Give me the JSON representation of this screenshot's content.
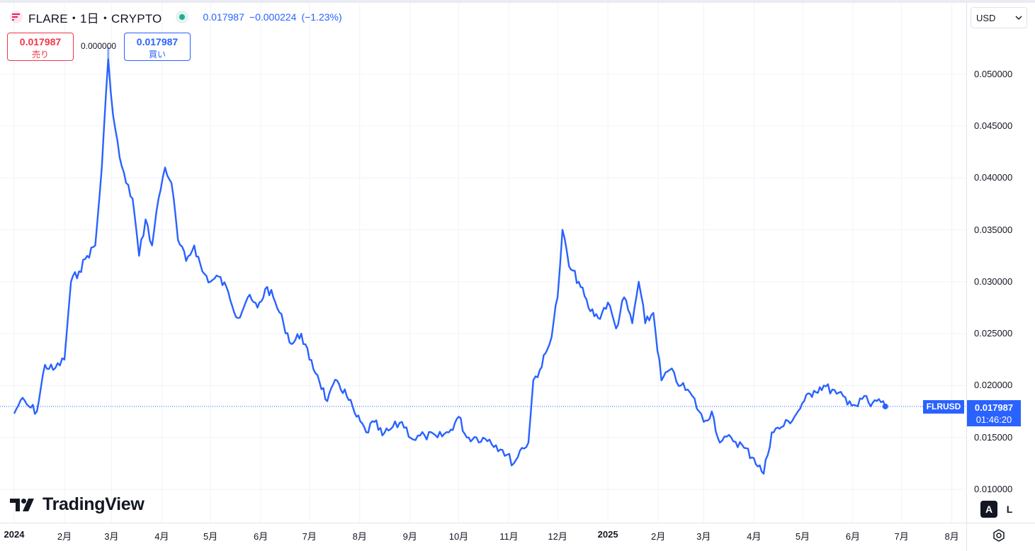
{
  "legend": {
    "title": "FLARE・1日・CRYPTO",
    "last": "0.017987",
    "change": "−0.000224",
    "change_pct": "(−1.23%)"
  },
  "trade": {
    "sell_price": "0.017987",
    "sell_label": "売り",
    "spread": "0.000000",
    "buy_price": "0.017987",
    "buy_label": "買い"
  },
  "currency": "USD",
  "price_axis": [
    "0.050000",
    "0.045000",
    "0.040000",
    "0.035000",
    "0.030000",
    "0.025000",
    "0.020000",
    "0.015000",
    "0.010000"
  ],
  "time_axis": [
    "2024",
    "2月",
    "3月",
    "4月",
    "5月",
    "6月",
    "7月",
    "8月",
    "9月",
    "10月",
    "11月",
    "12月",
    "2025",
    "2月",
    "3月",
    "4月",
    "5月",
    "6月",
    "7月",
    "8月"
  ],
  "last_price_label": {
    "symbol": "FLRUSD",
    "price": "0.017987",
    "countdown": "01:46:20"
  },
  "watermark": "TradingView",
  "scale_buttons": {
    "auto": "A",
    "log": "L"
  },
  "colors": {
    "line": "#2962ff",
    "sell": "#f23645",
    "buy": "#2962ff",
    "grid": "#f0f3fa"
  },
  "chart_data": {
    "type": "line",
    "series": [
      {
        "name": "FLRUSD",
        "points": [
          [
            "2024-01-01",
            0.0173
          ],
          [
            "2024-01-05",
            0.0186
          ],
          [
            "2024-01-10",
            0.018
          ],
          [
            "2024-01-15",
            0.0175
          ],
          [
            "2024-01-20",
            0.022
          ],
          [
            "2024-01-25",
            0.0215
          ],
          [
            "2024-02-01",
            0.0225
          ],
          [
            "2024-02-05",
            0.03
          ],
          [
            "2024-02-10",
            0.031
          ],
          [
            "2024-02-15",
            0.0325
          ],
          [
            "2024-02-20",
            0.0335
          ],
          [
            "2024-02-24",
            0.041
          ],
          [
            "2024-02-28",
            0.0515
          ],
          [
            "2024-03-02",
            0.046
          ],
          [
            "2024-03-06",
            0.042
          ],
          [
            "2024-03-10",
            0.0395
          ],
          [
            "2024-03-14",
            0.038
          ],
          [
            "2024-03-18",
            0.0325
          ],
          [
            "2024-03-22",
            0.036
          ],
          [
            "2024-03-26",
            0.0335
          ],
          [
            "2024-03-30",
            0.038
          ],
          [
            "2024-04-03",
            0.041
          ],
          [
            "2024-04-07",
            0.0395
          ],
          [
            "2024-04-11",
            0.034
          ],
          [
            "2024-04-16",
            0.032
          ],
          [
            "2024-04-21",
            0.0335
          ],
          [
            "2024-04-26",
            0.031
          ],
          [
            "2024-05-01",
            0.03
          ],
          [
            "2024-05-06",
            0.0305
          ],
          [
            "2024-05-12",
            0.029
          ],
          [
            "2024-05-18",
            0.0265
          ],
          [
            "2024-05-24",
            0.0285
          ],
          [
            "2024-05-30",
            0.0275
          ],
          [
            "2024-06-05",
            0.0295
          ],
          [
            "2024-06-10",
            0.028
          ],
          [
            "2024-06-15",
            0.026
          ],
          [
            "2024-06-20",
            0.024
          ],
          [
            "2024-06-26",
            0.025
          ],
          [
            "2024-07-01",
            0.0225
          ],
          [
            "2024-07-06",
            0.021
          ],
          [
            "2024-07-12",
            0.0185
          ],
          [
            "2024-07-18",
            0.0205
          ],
          [
            "2024-07-24",
            0.019
          ],
          [
            "2024-07-30",
            0.017
          ],
          [
            "2024-08-05",
            0.0155
          ],
          [
            "2024-08-10",
            0.0165
          ],
          [
            "2024-08-15",
            0.0152
          ],
          [
            "2024-08-20",
            0.0158
          ],
          [
            "2024-08-27",
            0.0165
          ],
          [
            "2024-09-03",
            0.0148
          ],
          [
            "2024-09-10",
            0.0152
          ],
          [
            "2024-09-18",
            0.015
          ],
          [
            "2024-09-25",
            0.0155
          ],
          [
            "2024-10-01",
            0.017
          ],
          [
            "2024-10-06",
            0.015
          ],
          [
            "2024-10-12",
            0.015
          ],
          [
            "2024-10-20",
            0.0148
          ],
          [
            "2024-10-28",
            0.0138
          ],
          [
            "2024-11-04",
            0.0125
          ],
          [
            "2024-11-09",
            0.014
          ],
          [
            "2024-11-13",
            0.0145
          ],
          [
            "2024-11-16",
            0.0205
          ],
          [
            "2024-11-20",
            0.0215
          ],
          [
            "2024-11-26",
            0.024
          ],
          [
            "2024-12-01",
            0.0285
          ],
          [
            "2024-12-04",
            0.035
          ],
          [
            "2024-12-08",
            0.0315
          ],
          [
            "2024-12-14",
            0.03
          ],
          [
            "2024-12-20",
            0.0275
          ],
          [
            "2024-12-26",
            0.0265
          ],
          [
            "2025-01-01",
            0.028
          ],
          [
            "2025-01-06",
            0.0255
          ],
          [
            "2025-01-11",
            0.0285
          ],
          [
            "2025-01-16",
            0.026
          ],
          [
            "2025-01-20",
            0.03
          ],
          [
            "2025-01-24",
            0.026
          ],
          [
            "2025-01-29",
            0.027
          ],
          [
            "2025-02-03",
            0.0205
          ],
          [
            "2025-02-08",
            0.0215
          ],
          [
            "2025-02-15",
            0.02
          ],
          [
            "2025-02-22",
            0.019
          ],
          [
            "2025-03-01",
            0.0165
          ],
          [
            "2025-03-06",
            0.0175
          ],
          [
            "2025-03-11",
            0.0145
          ],
          [
            "2025-03-18",
            0.015
          ],
          [
            "2025-03-26",
            0.014
          ],
          [
            "2025-04-01",
            0.013
          ],
          [
            "2025-04-07",
            0.0115
          ],
          [
            "2025-04-12",
            0.0155
          ],
          [
            "2025-04-18",
            0.016
          ],
          [
            "2025-04-26",
            0.017
          ],
          [
            "2025-05-02",
            0.0185
          ],
          [
            "2025-05-08",
            0.0195
          ],
          [
            "2025-05-14",
            0.02
          ],
          [
            "2025-05-22",
            0.0192
          ],
          [
            "2025-05-30",
            0.0185
          ],
          [
            "2025-06-04",
            0.018
          ],
          [
            "2025-06-08",
            0.019
          ],
          [
            "2025-06-12",
            0.018
          ],
          [
            "2025-06-17",
            0.0187
          ],
          [
            "2025-06-21",
            0.017987
          ]
        ]
      }
    ],
    "ylim": [
      0.0095,
      0.0535
    ],
    "last_value": 0.017987
  }
}
